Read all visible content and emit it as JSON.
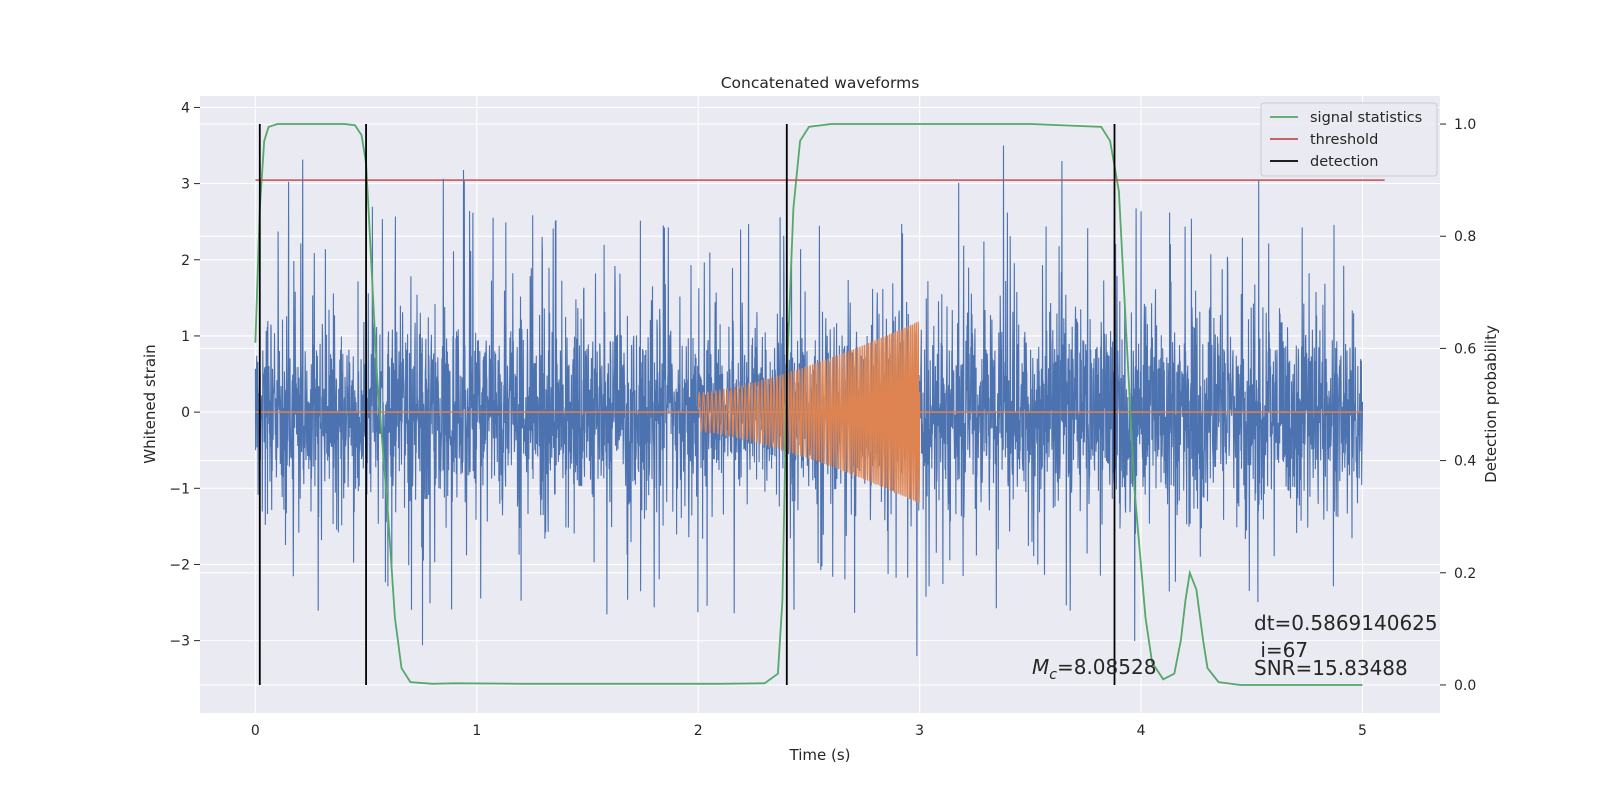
{
  "chart_data": {
    "type": "line",
    "title": "Concatenated waveforms",
    "xlabel": "Time (s)",
    "ylabel": "Whitened strain",
    "ylabel_right": "Detection probability",
    "xlim": [
      -0.25,
      5.35
    ],
    "ylim": [
      -3.95,
      4.15
    ],
    "ylim_right": [
      -0.05,
      1.05
    ],
    "grid": true,
    "legend_position": "top-right",
    "x_ticks": [
      0,
      1,
      2,
      3,
      4,
      5
    ],
    "y_ticks": [
      4,
      3,
      2,
      1,
      0,
      -1,
      -2,
      -3
    ],
    "y_tick_labels": [
      "4",
      "3",
      "2",
      "1",
      "0",
      "−1",
      "−2",
      "−3"
    ],
    "y_right_ticks": [
      1.0,
      0.8,
      0.6,
      0.4,
      0.2,
      0.0
    ],
    "y_right_tick_labels": [
      "1.0",
      "0.8",
      "0.6",
      "0.4",
      "0.2",
      "0.0"
    ],
    "series": [
      {
        "name": "",
        "kind": "whitened-strain-noise",
        "color": "#4c72b0",
        "x_range": [
          0,
          5
        ],
        "core_amplitude": 0.85,
        "max_abs": 3.8
      },
      {
        "name": "",
        "kind": "injected-chirp-waveform",
        "color": "#dd8452",
        "x_range": [
          2.0,
          3.0
        ],
        "start_amplitude": 0.25,
        "end_amplitude": 1.2,
        "baseline_range": [
          0,
          5
        ]
      },
      {
        "name": "signal statistics",
        "axis": "right",
        "color": "#55a868",
        "x": [
          0,
          0.02,
          0.04,
          0.06,
          0.1,
          0.2,
          0.3,
          0.4,
          0.45,
          0.48,
          0.5,
          0.52,
          0.55,
          0.6,
          0.63,
          0.66,
          0.7,
          0.8,
          0.9,
          1.2,
          1.5,
          1.8,
          2.1,
          2.3,
          2.36,
          2.38,
          2.4,
          2.43,
          2.46,
          2.5,
          2.6,
          3.0,
          3.5,
          3.82,
          3.86,
          3.9,
          3.93,
          3.97,
          4.02,
          4.05,
          4.1,
          4.15,
          4.18,
          4.2,
          4.22,
          4.25,
          4.28,
          4.3,
          4.35,
          4.45,
          4.6,
          5.0
        ],
        "y": [
          0.61,
          0.85,
          0.97,
          0.995,
          1.0,
          1.0,
          1.0,
          1.0,
          0.998,
          0.98,
          0.93,
          0.78,
          0.55,
          0.3,
          0.12,
          0.03,
          0.005,
          0.002,
          0.003,
          0.002,
          0.002,
          0.002,
          0.002,
          0.003,
          0.02,
          0.15,
          0.55,
          0.85,
          0.97,
          0.995,
          1.0,
          1.0,
          1.0,
          0.995,
          0.97,
          0.88,
          0.65,
          0.35,
          0.12,
          0.04,
          0.01,
          0.02,
          0.08,
          0.15,
          0.2,
          0.17,
          0.08,
          0.03,
          0.005,
          0.0,
          0.0,
          0.0
        ]
      },
      {
        "name": "threshold",
        "axis": "right",
        "color": "#c44e52",
        "x": [
          0,
          5.1
        ],
        "y": [
          0.9,
          0.9
        ]
      },
      {
        "name": "detection",
        "axis": "right",
        "color": "#000000",
        "vlines_x": [
          0.02,
          0.5,
          2.4,
          3.88
        ],
        "vline_range": [
          0.0,
          1.0
        ]
      }
    ],
    "annotations": {
      "mc_symbol": "M",
      "mc_subscript": "c",
      "mc_value": "=8.08528",
      "dt": "dt=0.5869140625",
      "i": " i=67",
      "snr": "SNR=15.83488"
    }
  }
}
